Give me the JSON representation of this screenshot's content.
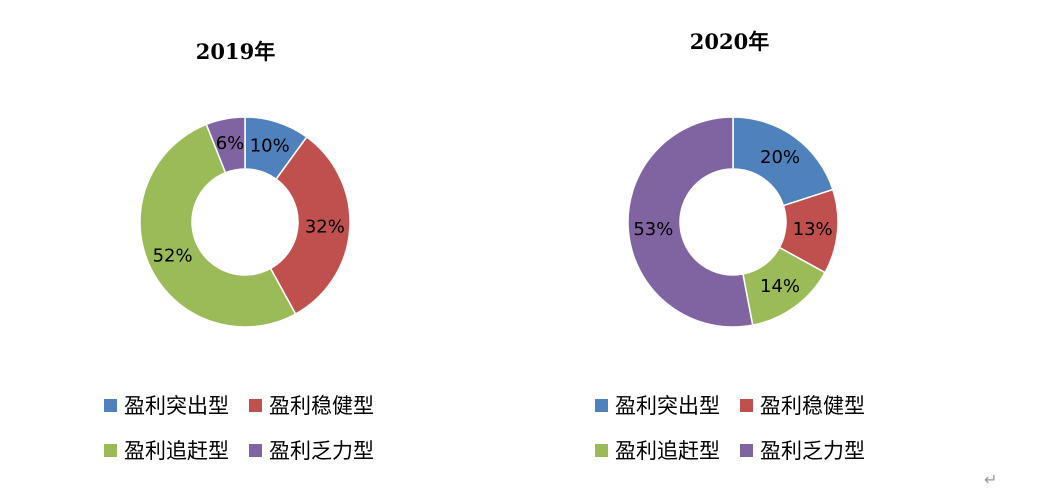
{
  "chart_data": [
    {
      "type": "pie",
      "title": "2019年",
      "categories": [
        "盈利突出型",
        "盈利稳健型",
        "盈利追赶型",
        "盈利乏力型"
      ],
      "values": [
        10,
        32,
        52,
        6
      ],
      "labels": [
        "10%",
        "32%",
        "52%",
        "6%"
      ],
      "colors": [
        "#4F81BD",
        "#C0504D",
        "#9BBB59",
        "#8064A2"
      ],
      "donut": true,
      "legend_position": "bottom"
    },
    {
      "type": "pie",
      "title": "2020年",
      "categories": [
        "盈利突出型",
        "盈利稳健型",
        "盈利追赶型",
        "盈利乏力型"
      ],
      "values": [
        20,
        13,
        14,
        53
      ],
      "labels": [
        "20%",
        "13%",
        "14%",
        "53%"
      ],
      "colors": [
        "#4F81BD",
        "#C0504D",
        "#9BBB59",
        "#8064A2"
      ],
      "donut": true,
      "legend_position": "bottom"
    }
  ],
  "paragraph_mark": "↵"
}
